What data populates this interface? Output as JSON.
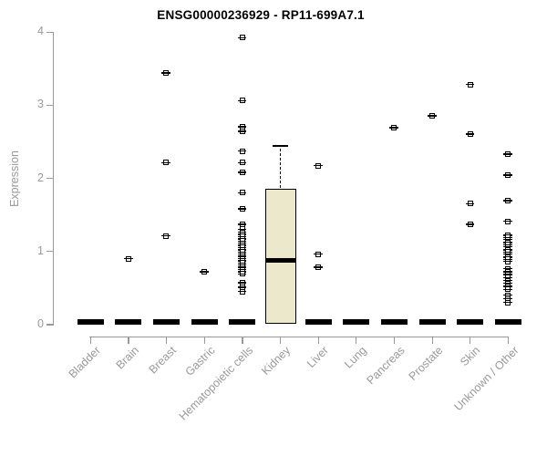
{
  "title": "ENSG00000236929 - RP11-699A7.1",
  "chart_data": {
    "type": "boxplot",
    "title": "ENSG00000236929 - RP11-699A7.1",
    "xlabel": "",
    "ylabel": "Expression",
    "ylim": [
      0,
      4
    ],
    "yticks": [
      0,
      1,
      2,
      3,
      4
    ],
    "grid": false,
    "legend_position": "none",
    "marker": "open-square",
    "colors": {
      "box_fill": "#ECE8CC",
      "box_border": "#000000",
      "axis": "#999999",
      "points": "#000000",
      "title": "#000000"
    },
    "categories": [
      "Bladder",
      "Brain",
      "Breast",
      "Gastric",
      "Hematopoietic cells",
      "Kidney",
      "Liver",
      "Lung",
      "Pancreas",
      "Prostate",
      "Skin",
      "Unknown / Other"
    ],
    "series": [
      {
        "category": "Bladder",
        "box": {
          "q1": 0,
          "median": 0,
          "q3": 0
        },
        "points": []
      },
      {
        "category": "Brain",
        "box": {
          "q1": 0,
          "median": 0,
          "q3": 0
        },
        "points": [
          0.9
        ]
      },
      {
        "category": "Breast",
        "box": {
          "q1": 0,
          "median": 0,
          "q3": 0
        },
        "points": [
          3.44,
          2.21,
          1.21
        ]
      },
      {
        "category": "Gastric",
        "box": {
          "q1": 0,
          "median": 0,
          "q3": 0
        },
        "points": [
          0.72
        ]
      },
      {
        "category": "Hematopoietic cells",
        "box": {
          "q1": 0,
          "median": 0,
          "q3": 0
        },
        "points": [
          3.92,
          3.06,
          2.7,
          2.64,
          2.37,
          2.21,
          2.08,
          1.8,
          1.58,
          1.37,
          1.3,
          1.26,
          1.23,
          1.2,
          1.17,
          1.14,
          1.11,
          1.08,
          1.05,
          1.02,
          0.99,
          0.96,
          0.93,
          0.9,
          0.87,
          0.84,
          0.81,
          0.78,
          0.75,
          0.72,
          0.69,
          0.57,
          0.51,
          0.45
        ]
      },
      {
        "category": "Kidney",
        "box": {
          "q1": 0,
          "median": 0.88,
          "q3": 1.86,
          "whisker_high": 2.44
        },
        "points": []
      },
      {
        "category": "Liver",
        "box": {
          "q1": 0,
          "median": 0,
          "q3": 0
        },
        "points": [
          2.17,
          0.96,
          0.78
        ]
      },
      {
        "category": "Lung",
        "box": {
          "q1": 0,
          "median": 0,
          "q3": 0
        },
        "points": []
      },
      {
        "category": "Pancreas",
        "box": {
          "q1": 0,
          "median": 0,
          "q3": 0
        },
        "points": [
          2.69
        ]
      },
      {
        "category": "Prostate",
        "box": {
          "q1": 0,
          "median": 0,
          "q3": 0
        },
        "points": [
          2.85
        ]
      },
      {
        "category": "Skin",
        "box": {
          "q1": 0,
          "median": 0,
          "q3": 0
        },
        "points": [
          3.28,
          2.6,
          1.65,
          1.37
        ]
      },
      {
        "category": "Unknown / Other",
        "box": {
          "q1": 0,
          "median": 0,
          "q3": 0
        },
        "points": [
          2.33,
          2.04,
          1.69,
          1.41,
          1.22,
          1.19,
          1.16,
          1.12,
          1.09,
          1.06,
          1.02,
          0.99,
          0.96,
          0.92,
          0.89,
          0.86,
          0.76,
          0.72,
          0.68,
          0.64,
          0.6,
          0.56,
          0.52,
          0.48,
          0.4,
          0.35,
          0.3
        ]
      }
    ]
  }
}
